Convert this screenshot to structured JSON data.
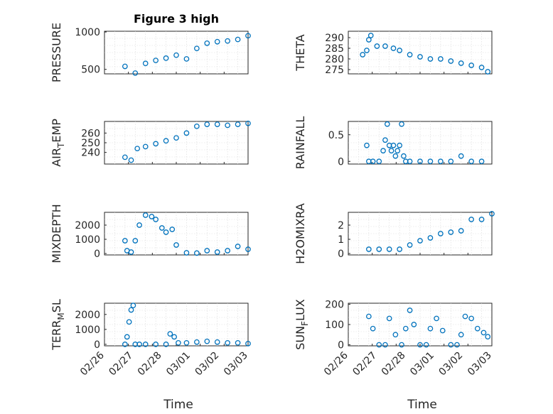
{
  "colors": {
    "marker": "#0072BD",
    "axes": "#262626",
    "grid": "#d9d9d9"
  },
  "chart_data": [
    {
      "type": "scatter",
      "id": "pressure",
      "title": "Figure 3 high",
      "ylabel": "PRESSURE",
      "ylim": [
        440,
        1010
      ],
      "yticks": [
        500,
        1000
      ],
      "ytick_labels": [
        "500",
        "1000"
      ],
      "xlim": [
        0,
        7
      ],
      "x_tick_labels": [],
      "series": [
        {
          "name": "PRESSURE",
          "x": [
            1.0,
            1.5,
            2.0,
            2.5,
            3.0,
            3.5,
            4.0,
            4.5,
            5.0,
            5.5,
            6.0,
            6.5,
            7.0
          ],
          "y": [
            540,
            450,
            580,
            620,
            650,
            690,
            640,
            780,
            850,
            870,
            880,
            900,
            950
          ]
        }
      ]
    },
    {
      "type": "scatter",
      "id": "theta",
      "title": "",
      "ylabel": "THETA",
      "ylim": [
        273,
        293
      ],
      "yticks": [
        275,
        280,
        285,
        290
      ],
      "ytick_labels": [
        "275",
        "280",
        "285",
        "290"
      ],
      "xlim": [
        0,
        7
      ],
      "x_tick_labels": [],
      "series": [
        {
          "name": "THETA",
          "x": [
            0.7,
            0.9,
            1.0,
            1.1,
            1.4,
            1.8,
            2.2,
            2.5,
            3.0,
            3.5,
            4.0,
            4.5,
            5.0,
            5.5,
            6.0,
            6.5,
            6.8
          ],
          "y": [
            282,
            284,
            289,
            291,
            286,
            286,
            285,
            284,
            282,
            281,
            280,
            280,
            279,
            278,
            277,
            276,
            274
          ]
        }
      ]
    },
    {
      "type": "scatter",
      "id": "air_temp",
      "title": "",
      "ylabel": "AIR",
      "ylabel_sub": "T",
      "ylabel_rest": "EMP",
      "ylim": [
        228,
        272
      ],
      "yticks": [
        240,
        250,
        260
      ],
      "ytick_labels": [
        "240",
        "250",
        "260"
      ],
      "xlim": [
        0,
        7
      ],
      "x_tick_labels": [],
      "series": [
        {
          "name": "AIR_TEMP",
          "x": [
            1.0,
            1.3,
            1.6,
            2.0,
            2.5,
            3.0,
            3.5,
            4.0,
            4.5,
            5.0,
            5.5,
            6.0,
            6.5,
            7.0
          ],
          "y": [
            235,
            232,
            244,
            246,
            249,
            252,
            255,
            260,
            267,
            269,
            269,
            268,
            269,
            270
          ]
        }
      ]
    },
    {
      "type": "scatter",
      "id": "rainfall",
      "title": "",
      "ylabel": "RAINFALL",
      "ylim": [
        -0.05,
        0.75
      ],
      "yticks": [
        0,
        0.5
      ],
      "ytick_labels": [
        "0",
        "0.5"
      ],
      "xlim": [
        0,
        7
      ],
      "x_tick_labels": [],
      "series": [
        {
          "name": "RAINFALL",
          "x": [
            0.9,
            1.0,
            1.2,
            1.5,
            1.7,
            1.8,
            1.9,
            2.0,
            2.1,
            2.2,
            2.3,
            2.4,
            2.5,
            2.6,
            2.7,
            2.8,
            3.0,
            3.5,
            4.0,
            4.5,
            5.0,
            5.5,
            6.0,
            6.5
          ],
          "y": [
            0.3,
            0,
            0,
            0,
            0.2,
            0.4,
            0.7,
            0.3,
            0.2,
            0.3,
            0.1,
            0.2,
            0.3,
            0.7,
            0.1,
            0,
            0,
            0,
            0,
            0,
            0,
            0.1,
            0,
            0
          ]
        }
      ]
    },
    {
      "type": "scatter",
      "id": "mixdepth",
      "title": "",
      "ylabel": "MIXDEPTH",
      "ylim": [
        -100,
        2900
      ],
      "yticks": [
        0,
        1000,
        2000
      ],
      "ytick_labels": [
        "0",
        "1000",
        "2000"
      ],
      "xlim": [
        0,
        7
      ],
      "x_tick_labels": [],
      "series": [
        {
          "name": "MIXDEPTH",
          "x": [
            1.0,
            1.1,
            1.3,
            1.5,
            1.7,
            2.0,
            2.3,
            2.5,
            2.8,
            3.0,
            3.3,
            3.5,
            4.0,
            4.5,
            5.0,
            5.5,
            6.0,
            6.5,
            7.0
          ],
          "y": [
            900,
            200,
            100,
            900,
            2000,
            2700,
            2600,
            2400,
            1800,
            1500,
            1700,
            600,
            50,
            30,
            200,
            100,
            200,
            500,
            300
          ]
        }
      ]
    },
    {
      "type": "scatter",
      "id": "h2omixra",
      "title": "",
      "ylabel": "H2OMIXRA",
      "ylim": [
        -0.1,
        2.9
      ],
      "yticks": [
        0,
        1,
        2
      ],
      "ytick_labels": [
        "0",
        "1",
        "2"
      ],
      "xlim": [
        0,
        7
      ],
      "x_tick_labels": [],
      "series": [
        {
          "name": "H2OMIXRA",
          "x": [
            1.0,
            1.5,
            2.0,
            2.5,
            3.0,
            3.5,
            4.0,
            4.5,
            5.0,
            5.5,
            6.0,
            6.5,
            7.0
          ],
          "y": [
            0.3,
            0.3,
            0.3,
            0.3,
            0.6,
            0.9,
            1.1,
            1.4,
            1.5,
            1.6,
            2.4,
            2.4,
            2.8
          ]
        }
      ]
    },
    {
      "type": "scatter",
      "id": "terr_msl",
      "title": "",
      "ylabel": "TERR",
      "ylabel_sub": "M",
      "ylabel_rest": "SL",
      "ylim": [
        -100,
        2750
      ],
      "yticks": [
        0,
        1000,
        2000
      ],
      "ytick_labels": [
        "0",
        "1000",
        "2000"
      ],
      "xlim": [
        0,
        7
      ],
      "x_tick_labels": [
        "02/26",
        "02/27",
        "02/28",
        "03/01",
        "03/02",
        "03/03"
      ],
      "series": [
        {
          "name": "TERR_MSL",
          "x": [
            1.0,
            1.1,
            1.2,
            1.3,
            1.4,
            1.5,
            1.7,
            2.0,
            2.5,
            3.0,
            3.2,
            3.4,
            3.6,
            4.0,
            4.5,
            5.0,
            5.5,
            6.0,
            6.5,
            7.0
          ],
          "y": [
            0,
            500,
            1500,
            2300,
            2600,
            0,
            0,
            0,
            0,
            0,
            700,
            500,
            100,
            100,
            150,
            200,
            150,
            100,
            100,
            50
          ]
        }
      ]
    },
    {
      "type": "scatter",
      "id": "sun_flux",
      "title": "",
      "ylabel": "SUN",
      "ylabel_sub": "F",
      "ylabel_rest": "LUX",
      "ylim": [
        -5,
        205
      ],
      "yticks": [
        0,
        100,
        200
      ],
      "ytick_labels": [
        "0",
        "100",
        "200"
      ],
      "xlim": [
        0,
        7
      ],
      "x_tick_labels": [
        "02/26",
        "02/27",
        "02/28",
        "03/01",
        "03/02",
        "03/03"
      ],
      "series": [
        {
          "name": "SUN_FLUX",
          "x": [
            1.0,
            1.2,
            1.5,
            1.8,
            2.0,
            2.3,
            2.6,
            2.8,
            3.0,
            3.2,
            3.5,
            3.8,
            4.0,
            4.3,
            4.6,
            5.0,
            5.3,
            5.5,
            5.7,
            6.0,
            6.3,
            6.6,
            6.8
          ],
          "y": [
            140,
            80,
            0,
            0,
            130,
            50,
            0,
            80,
            170,
            100,
            0,
            0,
            80,
            130,
            70,
            0,
            0,
            50,
            140,
            130,
            80,
            60,
            40
          ]
        }
      ]
    }
  ],
  "xlabels": [
    "Time",
    "Time"
  ]
}
